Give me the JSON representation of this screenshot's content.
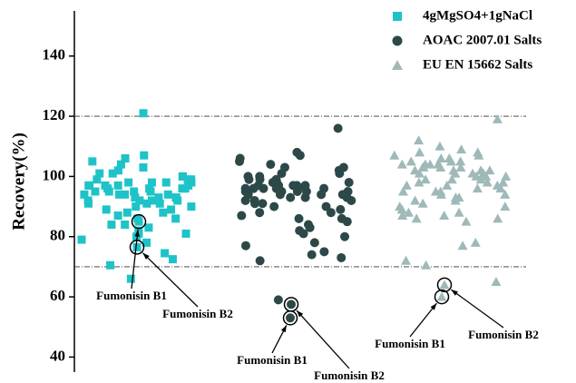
{
  "chart_data": {
    "type": "scatter",
    "ylabel": "Recovery(%)",
    "ylim": [
      35,
      155
    ],
    "yticks": [
      40,
      60,
      80,
      100,
      120,
      140
    ],
    "hlines": [
      120,
      70
    ],
    "legend": "upper right",
    "series": [
      {
        "name": "4gMgSO4+1gNaCl",
        "color": "#1ec3c8",
        "marker": "square",
        "values": [
          85,
          76.5,
          121,
          66,
          70.5,
          72.5,
          74.5,
          80,
          81,
          82,
          79,
          78,
          83,
          84,
          86,
          87,
          88,
          89,
          90,
          91,
          92,
          93,
          94,
          95,
          96,
          97,
          98,
          99,
          100,
          101,
          102,
          103,
          104,
          106,
          107,
          105,
          98,
          97,
          96,
          95,
          94,
          93,
          92,
          91,
          90,
          89,
          88,
          97,
          98,
          99,
          96,
          95,
          94,
          93,
          92,
          100,
          101,
          97,
          96,
          91,
          86,
          84,
          81,
          99,
          95,
          93,
          97,
          98,
          92,
          94
        ]
      },
      {
        "name": "AOAC 2007.01 Salts",
        "color": "#2d4848",
        "marker": "circle",
        "values": [
          57.5,
          53,
          59,
          116,
          72,
          73,
          74,
          75,
          77,
          78,
          80,
          81,
          82,
          83,
          84,
          85,
          86,
          87,
          88,
          89,
          90,
          91,
          92,
          93,
          94,
          95,
          96,
          97,
          98,
          99,
          100,
          101,
          102,
          103,
          104,
          105,
          106,
          107,
          108,
          97,
          96,
          95,
          94,
          93,
          92,
          91,
          96,
          97,
          98,
          99,
          95,
          94,
          93,
          96,
          97,
          98,
          99,
          100,
          95,
          96,
          97,
          94,
          92,
          90,
          88,
          86,
          101,
          103,
          96,
          95
        ]
      },
      {
        "name": "EU EN 15662 Salts",
        "color": "#9fb9b9",
        "marker": "triangle",
        "values": [
          64,
          60,
          119,
          78,
          72,
          70.5,
          65,
          85,
          86,
          87,
          88,
          89,
          90,
          91,
          92,
          93,
          94,
          95,
          96,
          97,
          98,
          99,
          100,
          101,
          102,
          103,
          104,
          105,
          106,
          107,
          108,
          109,
          110,
          112,
          100,
          101,
          102,
          103,
          104,
          105,
          98,
          97,
          96,
          95,
          94,
          93,
          92,
          100,
          101,
          102,
          103,
          104,
          99,
          98,
          97,
          106,
          107,
          95,
          90,
          88,
          86,
          87,
          101,
          103,
          105,
          108,
          77,
          99,
          102,
          104
        ]
      }
    ],
    "annotations": [
      "Fumonisin B1",
      "Fumonisin B2",
      "Fumonisin B1",
      "Fumonisin B2",
      "Fumonisin B1",
      "Fumonisin B2"
    ]
  }
}
